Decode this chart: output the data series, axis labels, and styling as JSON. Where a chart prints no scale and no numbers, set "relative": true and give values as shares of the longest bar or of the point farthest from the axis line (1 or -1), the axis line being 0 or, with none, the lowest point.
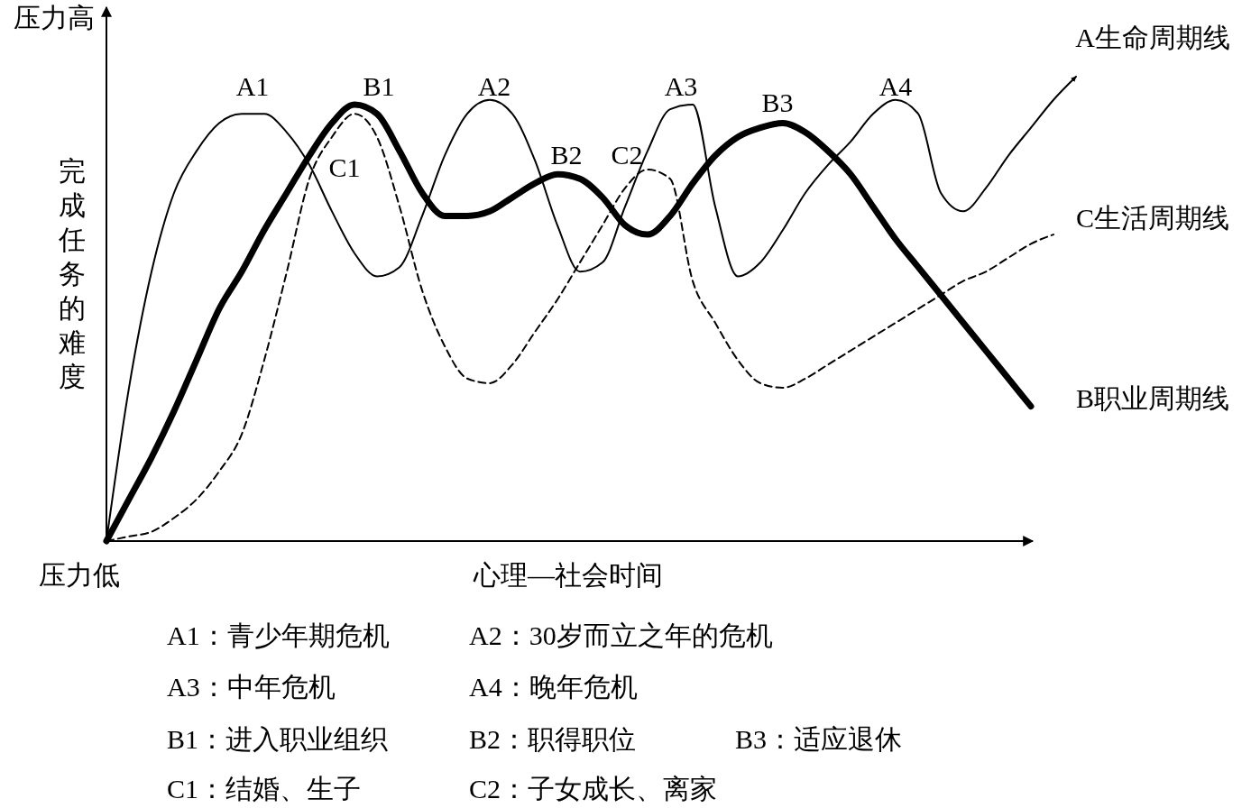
{
  "chart_data": {
    "type": "line",
    "relative": true,
    "xlabel": "心理—社会时间",
    "ylabel": "完成任务的难度",
    "categories": [
      null,
      null,
      null,
      null,
      null,
      null,
      null,
      null,
      null,
      null,
      null,
      null,
      null,
      null,
      null,
      null,
      null,
      null,
      null,
      null,
      null,
      null,
      null,
      null,
      null,
      null,
      null,
      null,
      null,
      null,
      null,
      null,
      null,
      null,
      null,
      null,
      null,
      null,
      null,
      null,
      null,
      null,
      null,
      null
    ],
    "series": [
      {
        "name": "A生命周期线",
        "color": "#000000",
        "line_style": "solid",
        "values": [
          0,
          0.33,
          0.58,
          0.75,
          0.84,
          0.9,
          0.92,
          0.92,
          0.88,
          0.81,
          0.71,
          0.62,
          0.57,
          0.59,
          0.7,
          0.83,
          0.92,
          0.95,
          0.92,
          0.82,
          0.68,
          0.58,
          0.6,
          0.72,
          0.84,
          0.93,
          0.94,
          0.72,
          0.57,
          0.6,
          0.67,
          0.75,
          0.81,
          0.86,
          0.92,
          0.95,
          0.92,
          0.75,
          0.71,
          0.76,
          0.83,
          0.89,
          0.95,
          1
        ]
      },
      {
        "name": "B职业周期线",
        "color": "#000000",
        "line_style": "solid",
        "values": [
          0,
          0.09,
          0.18,
          0.28,
          0.39,
          0.5,
          0.58,
          0.67,
          0.75,
          0.83,
          0.9,
          0.94,
          0.92,
          0.84,
          0.75,
          0.7,
          0.7,
          0.71,
          0.74,
          0.77,
          0.79,
          0.78,
          0.74,
          0.68,
          0.66,
          0.7,
          0.77,
          0.83,
          0.87,
          0.89,
          0.9,
          0.88,
          0.84,
          0.79,
          0.72,
          0.65,
          0.59,
          0.53,
          0.47,
          0.41,
          0.35,
          0.29,
          null,
          null
        ]
      },
      {
        "name": "C生活周期线",
        "color": "#000000",
        "line_style": "dashed",
        "values": [
          0,
          0.01,
          0.02,
          0.05,
          0.09,
          0.15,
          0.23,
          0.39,
          0.58,
          0.78,
          0.87,
          0.92,
          0.87,
          0.72,
          0.54,
          0.42,
          0.35,
          0.34,
          0.38,
          0.45,
          0.52,
          0.6,
          0.68,
          0.76,
          0.8,
          0.78,
          0.56,
          0.47,
          0.39,
          0.34,
          0.33,
          0.35,
          0.38,
          0.41,
          0.44,
          0.47,
          0.5,
          0.53,
          0.56,
          0.58,
          0.61,
          0.64,
          0.66,
          null
        ]
      }
    ],
    "annotations": [
      "压力高",
      "压力低",
      "A1",
      "B1",
      "A2",
      "A3",
      "B3",
      "A4",
      "B2",
      "C2",
      "C1",
      "A1：青少年期危机",
      "A2：30岁而立之年的危机",
      "A3：中年危机",
      "A4：晚年危机",
      "B1：进入职业组织",
      "B2：职得职位",
      "B3：适应退休",
      "C1：结婚、生子",
      "C2：子女成长、离家"
    ]
  }
}
